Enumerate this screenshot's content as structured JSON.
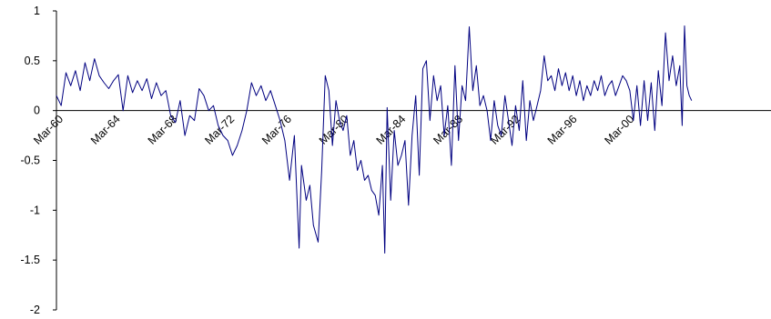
{
  "chart_data": {
    "type": "line",
    "title": "",
    "xlabel": "",
    "ylabel": "",
    "ylim": [
      -2,
      1
    ],
    "x_range": [
      "1960-03",
      "2004-03"
    ],
    "y_ticks": [
      {
        "value": 1,
        "label": "1"
      },
      {
        "value": 0.5,
        "label": "0.5"
      },
      {
        "value": 0,
        "label": "0"
      },
      {
        "value": -0.5,
        "label": "-0.5"
      },
      {
        "value": -1,
        "label": "-1"
      },
      {
        "value": -1.5,
        "label": "-1.5"
      },
      {
        "value": -2,
        "label": "-2"
      }
    ],
    "x_ticks": [
      {
        "value": "1960-03",
        "label": "Mar-60"
      },
      {
        "value": "1964-03",
        "label": "Mar-64"
      },
      {
        "value": "1968-03",
        "label": "Mar-68"
      },
      {
        "value": "1972-03",
        "label": "Mar-72"
      },
      {
        "value": "1976-03",
        "label": "Mar-76"
      },
      {
        "value": "1980-03",
        "label": "Mar-80"
      },
      {
        "value": "1984-03",
        "label": "Mar-84"
      },
      {
        "value": "1988-03",
        "label": "Mar-88"
      },
      {
        "value": "1992-03",
        "label": "Mar-92"
      },
      {
        "value": "1996-03",
        "label": "Mar-96"
      },
      {
        "value": "2000-03",
        "label": "Mar-00"
      }
    ],
    "grid": false,
    "legend": "none",
    "series": [
      {
        "color": "#000080",
        "points": [
          [
            "1960-03",
            0.15
          ],
          [
            "1960-07",
            0.05
          ],
          [
            "1960-11",
            0.38
          ],
          [
            "1961-03",
            0.25
          ],
          [
            "1961-07",
            0.4
          ],
          [
            "1961-11",
            0.2
          ],
          [
            "1962-03",
            0.48
          ],
          [
            "1962-07",
            0.3
          ],
          [
            "1962-11",
            0.52
          ],
          [
            "1963-03",
            0.35
          ],
          [
            "1963-07",
            0.28
          ],
          [
            "1963-11",
            0.22
          ],
          [
            "1964-03",
            0.3
          ],
          [
            "1964-07",
            0.36
          ],
          [
            "1964-11",
            0.0
          ],
          [
            "1965-03",
            0.35
          ],
          [
            "1965-07",
            0.18
          ],
          [
            "1965-11",
            0.3
          ],
          [
            "1966-03",
            0.2
          ],
          [
            "1966-07",
            0.32
          ],
          [
            "1966-11",
            0.12
          ],
          [
            "1967-03",
            0.28
          ],
          [
            "1967-07",
            0.15
          ],
          [
            "1967-11",
            0.2
          ],
          [
            "1968-03",
            -0.05
          ],
          [
            "1968-07",
            -0.12
          ],
          [
            "1968-11",
            0.1
          ],
          [
            "1969-03",
            -0.25
          ],
          [
            "1969-07",
            -0.05
          ],
          [
            "1969-11",
            -0.1
          ],
          [
            "1970-03",
            0.22
          ],
          [
            "1970-07",
            0.15
          ],
          [
            "1970-11",
            0.0
          ],
          [
            "1971-03",
            0.05
          ],
          [
            "1971-07",
            -0.15
          ],
          [
            "1971-11",
            -0.25
          ],
          [
            "1972-03",
            -0.3
          ],
          [
            "1972-07",
            -0.45
          ],
          [
            "1972-11",
            -0.35
          ],
          [
            "1973-03",
            -0.2
          ],
          [
            "1973-07",
            0.0
          ],
          [
            "1973-11",
            0.28
          ],
          [
            "1974-03",
            0.15
          ],
          [
            "1974-07",
            0.25
          ],
          [
            "1974-11",
            0.1
          ],
          [
            "1975-03",
            0.2
          ],
          [
            "1975-07",
            0.05
          ],
          [
            "1975-11",
            -0.1
          ],
          [
            "1976-03",
            -0.3
          ],
          [
            "1976-07",
            -0.7
          ],
          [
            "1976-11",
            -0.25
          ],
          [
            "1977-03",
            -1.38
          ],
          [
            "1977-05",
            -0.55
          ],
          [
            "1977-09",
            -0.9
          ],
          [
            "1977-12",
            -0.75
          ],
          [
            "1978-03",
            -1.15
          ],
          [
            "1978-07",
            -1.32
          ],
          [
            "1978-10",
            -0.6
          ],
          [
            "1979-01",
            0.35
          ],
          [
            "1979-04",
            0.2
          ],
          [
            "1979-07",
            -0.35
          ],
          [
            "1979-10",
            0.1
          ],
          [
            "1980-01",
            -0.1
          ],
          [
            "1980-04",
            -0.2
          ],
          [
            "1980-07",
            -0.05
          ],
          [
            "1980-10",
            -0.45
          ],
          [
            "1981-01",
            -0.3
          ],
          [
            "1981-04",
            -0.6
          ],
          [
            "1981-07",
            -0.5
          ],
          [
            "1981-10",
            -0.7
          ],
          [
            "1982-01",
            -0.65
          ],
          [
            "1982-04",
            -0.8
          ],
          [
            "1982-07",
            -0.85
          ],
          [
            "1982-10",
            -1.05
          ],
          [
            "1983-01",
            -0.55
          ],
          [
            "1983-03",
            -1.43
          ],
          [
            "1983-05",
            0.03
          ],
          [
            "1983-08",
            -0.9
          ],
          [
            "1983-11",
            -0.2
          ],
          [
            "1984-02",
            -0.55
          ],
          [
            "1984-05",
            -0.45
          ],
          [
            "1984-08",
            -0.3
          ],
          [
            "1984-11",
            -0.95
          ],
          [
            "1985-02",
            -0.25
          ],
          [
            "1985-05",
            0.15
          ],
          [
            "1985-08",
            -0.65
          ],
          [
            "1985-11",
            0.42
          ],
          [
            "1986-02",
            0.5
          ],
          [
            "1986-05",
            -0.1
          ],
          [
            "1986-08",
            0.35
          ],
          [
            "1986-11",
            0.1
          ],
          [
            "1987-02",
            0.25
          ],
          [
            "1987-05",
            -0.25
          ],
          [
            "1987-08",
            0.05
          ],
          [
            "1987-11",
            -0.55
          ],
          [
            "1988-02",
            0.45
          ],
          [
            "1988-05",
            -0.3
          ],
          [
            "1988-08",
            0.25
          ],
          [
            "1988-11",
            0.1
          ],
          [
            "1989-02",
            0.84
          ],
          [
            "1989-05",
            0.2
          ],
          [
            "1989-08",
            0.45
          ],
          [
            "1989-11",
            0.05
          ],
          [
            "1990-02",
            0.15
          ],
          [
            "1990-05",
            0.0
          ],
          [
            "1990-08",
            -0.3
          ],
          [
            "1990-11",
            0.1
          ],
          [
            "1991-02",
            -0.15
          ],
          [
            "1991-05",
            -0.25
          ],
          [
            "1991-08",
            0.15
          ],
          [
            "1991-11",
            -0.1
          ],
          [
            "1992-02",
            -0.35
          ],
          [
            "1992-05",
            0.05
          ],
          [
            "1992-08",
            -0.2
          ],
          [
            "1992-11",
            0.3
          ],
          [
            "1993-02",
            -0.3
          ],
          [
            "1993-05",
            0.1
          ],
          [
            "1993-08",
            -0.1
          ],
          [
            "1993-11",
            0.05
          ],
          [
            "1994-02",
            0.2
          ],
          [
            "1994-05",
            0.55
          ],
          [
            "1994-08",
            0.3
          ],
          [
            "1994-11",
            0.35
          ],
          [
            "1995-02",
            0.2
          ],
          [
            "1995-05",
            0.42
          ],
          [
            "1995-08",
            0.25
          ],
          [
            "1995-11",
            0.38
          ],
          [
            "1996-02",
            0.2
          ],
          [
            "1996-05",
            0.35
          ],
          [
            "1996-08",
            0.15
          ],
          [
            "1996-11",
            0.3
          ],
          [
            "1997-02",
            0.1
          ],
          [
            "1997-05",
            0.25
          ],
          [
            "1997-08",
            0.15
          ],
          [
            "1997-11",
            0.3
          ],
          [
            "1998-02",
            0.2
          ],
          [
            "1998-05",
            0.35
          ],
          [
            "1998-08",
            0.15
          ],
          [
            "1998-11",
            0.25
          ],
          [
            "1999-02",
            0.3
          ],
          [
            "1999-05",
            0.15
          ],
          [
            "1999-08",
            0.25
          ],
          [
            "1999-11",
            0.35
          ],
          [
            "2000-02",
            0.3
          ],
          [
            "2000-05",
            0.2
          ],
          [
            "2000-08",
            -0.1
          ],
          [
            "2000-11",
            0.25
          ],
          [
            "2001-02",
            -0.15
          ],
          [
            "2001-05",
            0.3
          ],
          [
            "2001-08",
            -0.1
          ],
          [
            "2001-11",
            0.28
          ],
          [
            "2002-02",
            -0.2
          ],
          [
            "2002-05",
            0.4
          ],
          [
            "2002-08",
            0.05
          ],
          [
            "2002-11",
            0.78
          ],
          [
            "2003-02",
            0.3
          ],
          [
            "2003-05",
            0.55
          ],
          [
            "2003-08",
            0.25
          ],
          [
            "2003-11",
            0.45
          ],
          [
            "2004-01",
            -0.15
          ],
          [
            "2004-03",
            0.85
          ],
          [
            "2004-05",
            0.25
          ],
          [
            "2004-07",
            0.15
          ],
          [
            "2004-09",
            0.1
          ]
        ]
      }
    ]
  }
}
